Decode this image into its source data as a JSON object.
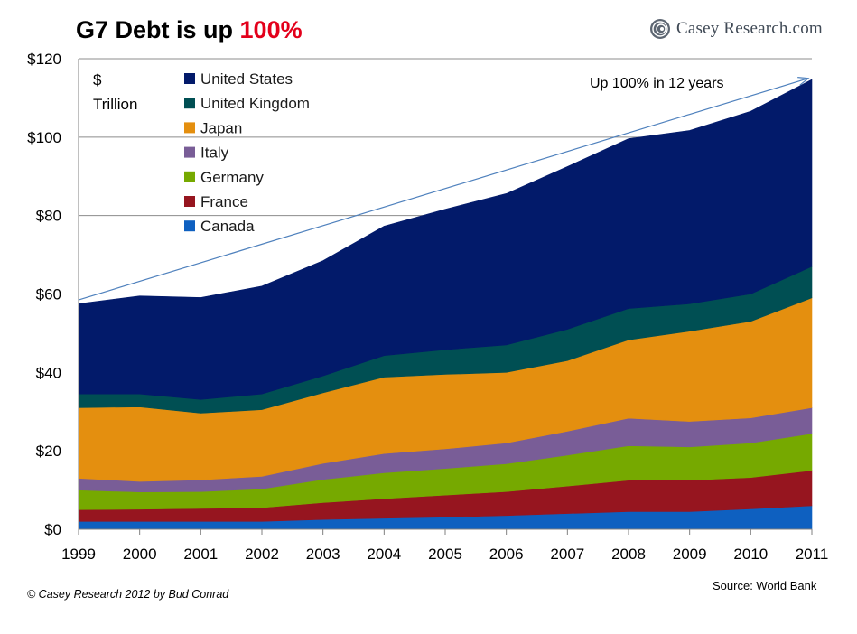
{
  "header": {
    "title_prefix": "G7 Debt is up ",
    "title_highlight": "100%",
    "logo_text": "Casey Research.com",
    "logo_icon": "swirl-logo-icon"
  },
  "footer": {
    "credit": "© Casey Research 2012 by Bud Conrad",
    "source": "Source: World Bank"
  },
  "chart_data": {
    "type": "area",
    "stacked": true,
    "unit_line1": "$",
    "unit_line2": "Trillion",
    "x": [
      "1999",
      "2000",
      "2001",
      "2002",
      "2003",
      "2004",
      "2005",
      "2006",
      "2007",
      "2008",
      "2009",
      "2010",
      "2011"
    ],
    "ylim": [
      0,
      120
    ],
    "yticks": [
      0,
      20,
      40,
      60,
      80,
      100,
      120
    ],
    "ytick_labels": [
      "$0",
      "$20",
      "$40",
      "$60",
      "$80",
      "$100",
      "$120"
    ],
    "grid": "horizontal",
    "legend_position": "top-left",
    "series": [
      {
        "name": "Canada",
        "color": "#0e60c0",
        "values": [
          2,
          2,
          2,
          2,
          2.5,
          2.8,
          3.1,
          3.5,
          4,
          4.5,
          4.5,
          5.2,
          6
        ]
      },
      {
        "name": "France",
        "color": "#96151f",
        "values": [
          3,
          3.1,
          3.3,
          3.5,
          4.3,
          5,
          5.6,
          6.1,
          7,
          8,
          8,
          8,
          9
        ]
      },
      {
        "name": "Germany",
        "color": "#76a900",
        "values": [
          5,
          4.4,
          4.3,
          4.8,
          5.9,
          6.6,
          6.8,
          7.1,
          7.9,
          8.8,
          8.5,
          8.8,
          9.4
        ]
      },
      {
        "name": "Italy",
        "color": "#795d97",
        "values": [
          3,
          2.7,
          3,
          3.2,
          4.1,
          4.9,
          5,
          5.3,
          6.1,
          7,
          6.5,
          6.4,
          6.6
        ]
      },
      {
        "name": "Japan",
        "color": "#e48f0f",
        "values": [
          18,
          19,
          17,
          17,
          18,
          19.5,
          19,
          18,
          18,
          20,
          23,
          24.6,
          28
        ]
      },
      {
        "name": "United Kingdom",
        "color": "#004f53",
        "values": [
          3.5,
          3.3,
          3.5,
          4,
          4.3,
          5.5,
          6.3,
          7,
          8,
          8,
          7,
          7,
          8
        ]
      },
      {
        "name": "United States",
        "color": "#021a6a",
        "values": [
          23,
          25,
          26,
          27.5,
          29.4,
          33,
          35.8,
          38.6,
          41.5,
          43.3,
          44.2,
          46.6,
          47.7
        ]
      }
    ],
    "annotation": {
      "text": "Up 100% in 12 years",
      "arrow_from": {
        "x": "1999",
        "y": 58.5
      },
      "arrow_to": {
        "x": "2011",
        "y": 115
      }
    }
  }
}
